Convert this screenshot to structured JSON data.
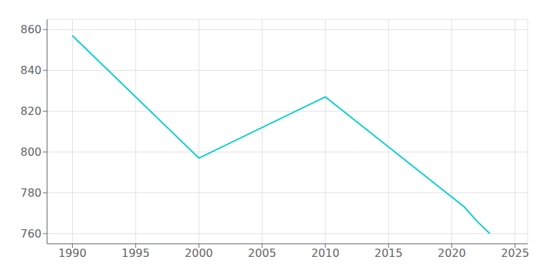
{
  "chart_data": {
    "type": "line",
    "x": [
      1990,
      2000,
      2010,
      2021,
      2022,
      2023
    ],
    "values": [
      857,
      797,
      827,
      773,
      766,
      760
    ],
    "color": "#00CED1",
    "xlim": [
      1988,
      2026
    ],
    "ylim": [
      755,
      865
    ],
    "xticks": [
      1990,
      1995,
      2000,
      2005,
      2010,
      2015,
      2020,
      2025
    ],
    "yticks": [
      760,
      780,
      800,
      820,
      840,
      860
    ],
    "grid": true
  }
}
